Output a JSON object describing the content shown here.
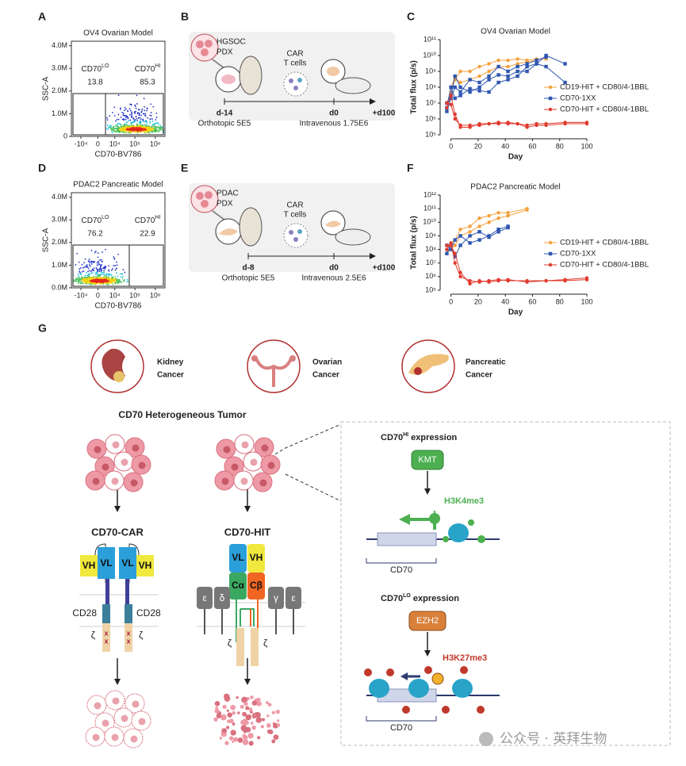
{
  "panel_labels": [
    "A",
    "B",
    "C",
    "D",
    "E",
    "F",
    "G"
  ],
  "chart_data": [
    {
      "type": "flow-density",
      "title": "OV4 Ovarian Model",
      "x_label": "CD70-BV786",
      "y_label": "SSC-A",
      "xscale": "biexponential",
      "xlim": [
        -30000,
        3000000
      ],
      "ylim": [
        0,
        4200000
      ],
      "xticks": [
        {
          "value": -10000,
          "label": "-10⁴"
        },
        0,
        {
          "value": 10000,
          "label": "10⁴"
        },
        {
          "value": 100000,
          "label": "10⁵"
        },
        {
          "value": 1000000,
          "label": "10⁶"
        }
      ],
      "yticks": [
        0,
        {
          "value": 1000000,
          "label": "1.0M"
        },
        {
          "value": 2000000,
          "label": "2.0M"
        },
        {
          "value": 3000000,
          "label": "3.0M"
        },
        {
          "value": 4000000,
          "label": "4.0M"
        }
      ],
      "gates": [
        {
          "name": {
            "base": "CD70",
            "sup": "LO"
          },
          "percent": 13.8
        },
        {
          "name": {
            "base": "CD70",
            "sup": "HI"
          },
          "percent": 85.3
        }
      ]
    },
    {
      "type": "line",
      "title": "OV4 Ovarian Model",
      "x_label": "Day",
      "y_label": "Total flux (p/s)",
      "log_scale": true,
      "legend": "right",
      "x": [
        -3,
        0,
        3,
        7,
        14,
        21,
        28,
        35,
        42,
        49,
        56,
        63,
        70,
        84,
        100
      ],
      "xlim": [
        -5,
        100
      ],
      "xticks": [
        0,
        20,
        40,
        60,
        80,
        100
      ],
      "ylim": [
        100000,
        100000000000
      ],
      "yticks": [
        {
          "value": 100000,
          "label": "10⁵"
        },
        {
          "value": 1000000,
          "label": "10⁶"
        },
        {
          "value": 10000000,
          "label": "10⁷"
        },
        {
          "value": 100000000,
          "label": "10⁸"
        },
        {
          "value": 1000000000,
          "label": "10⁹"
        },
        {
          "value": 10000000000,
          "label": "10¹⁰"
        },
        {
          "value": 100000000000,
          "label": "10¹¹"
        }
      ],
      "series": [
        {
          "name": "CD19-HIT + CD80/4-1BBL",
          "color": "#f4a03a",
          "marker": "circle",
          "replicates": [
            [
              10000000.0,
              50000000.0,
              300000000.0,
              1000000000.0,
              1000000000.0,
              2000000000.0,
              3000000000.0,
              5000000000.0,
              5000000000.0,
              6000000000.0,
              5000000000.0,
              6000000000.0,
              6000000000.0,
              null,
              null
            ],
            [
              5000000.0,
              100000000.0,
              400000000.0,
              200000000.0,
              300000000.0,
              500000000.0,
              1000000000.0,
              2000000000.0,
              2000000000.0,
              3000000000.0,
              4000000000.0,
              5000000000.0,
              null,
              null,
              null
            ]
          ]
        },
        {
          "name": "CD70-1XX",
          "color": "#2f56b0",
          "marker": "square",
          "replicates": [
            [
              3000000.0,
              20000000.0,
              100000000.0,
              50000000.0,
              300000000.0,
              200000000.0,
              500000000.0,
              2000000000.0,
              1000000000.0,
              2000000000.0,
              3000000000.0,
              5000000000.0,
              8000000000.0,
              null,
              null
            ],
            [
              10000000.0,
              30000000.0,
              500000000.0,
              100000000.0,
              50000000.0,
              100000000.0,
              300000000.0,
              600000000.0,
              500000000.0,
              1000000000.0,
              1000000000.0,
              3000000000.0,
              10000000000.0,
              3000000000.0,
              null
            ],
            [
              5000000.0,
              100000000.0,
              20000000.0,
              30000000.0,
              80000000.0,
              60000000.0,
              50000000.0,
              200000000.0,
              300000000.0,
              500000000.0,
              2000000000.0,
              3000000000.0,
              2000000000.0,
              200000000.0,
              null
            ]
          ]
        },
        {
          "name": "CD70-HIT + CD80/4-1BBL",
          "color": "#e03a2e",
          "marker": "circle",
          "replicates": [
            [
              5000000.0,
              30000000.0,
              2000000.0,
              300000.0,
              300000.0,
              500000.0,
              500000.0,
              600000.0,
              500000.0,
              500000.0,
              300000.0,
              400000.0,
              400000.0,
              500000.0,
              500000.0
            ],
            [
              10000000.0,
              8000000.0,
              1000000.0,
              400000.0,
              400000.0,
              400000.0,
              500000.0,
              500000.0,
              600000.0,
              500000.0,
              400000.0,
              500000.0,
              500000.0,
              600000.0,
              600000.0
            ]
          ]
        }
      ]
    },
    {
      "type": "flow-density",
      "title": "PDAC2 Pancreatic Model",
      "x_label": "CD70-BV786",
      "y_label": "SSC-A",
      "xscale": "biexponential",
      "xlim": [
        -30000,
        3000000
      ],
      "ylim": [
        0,
        4200000
      ],
      "xticks": [
        {
          "value": -10000,
          "label": "-10⁴"
        },
        0,
        {
          "value": 10000,
          "label": "10⁴"
        },
        {
          "value": 100000,
          "label": "10⁵"
        },
        {
          "value": 1000000,
          "label": "10⁶"
        }
      ],
      "yticks": [
        {
          "value": 0,
          "label": "0.0M"
        },
        {
          "value": 1000000,
          "label": "1.0M"
        },
        {
          "value": 2000000,
          "label": "2.0M"
        },
        {
          "value": 3000000,
          "label": "3.0M"
        },
        {
          "value": 4000000,
          "label": "4.0M"
        }
      ],
      "gates": [
        {
          "name": {
            "base": "CD70",
            "sup": "LO"
          },
          "percent": 76.2
        },
        {
          "name": {
            "base": "CD70",
            "sup": "HI"
          },
          "percent": 22.9
        }
      ]
    },
    {
      "type": "line",
      "title": "PDAC2 Pancreatic Model",
      "x_label": "Day",
      "y_label": "Total flux (p/s)",
      "log_scale": true,
      "legend": "right",
      "x": [
        -3,
        0,
        3,
        7,
        14,
        21,
        28,
        35,
        42,
        56,
        70,
        84,
        100
      ],
      "xlim": [
        -5,
        100
      ],
      "xticks": [
        0,
        20,
        40,
        60,
        80,
        100
      ],
      "ylim": [
        100000,
        1000000000000
      ],
      "yticks": [
        {
          "value": 100000,
          "label": "10⁵"
        },
        {
          "value": 1000000,
          "label": "10⁶"
        },
        {
          "value": 10000000,
          "label": "10⁷"
        },
        {
          "value": 100000000,
          "label": "10⁸"
        },
        {
          "value": 1000000000,
          "label": "10⁹"
        },
        {
          "value": 10000000000,
          "label": "10¹⁰"
        },
        {
          "value": 100000000000,
          "label": "10¹¹"
        },
        {
          "value": 1000000000000,
          "label": "10¹²"
        }
      ],
      "series": [
        {
          "name": "CD19-HIT + CD80/4-1BBL",
          "color": "#f4a03a",
          "marker": "circle",
          "replicates": [
            [
              100000000.0,
              300000000.0,
              500000000.0,
              3000000000.0,
              5000000000.0,
              20000000000.0,
              30000000000.0,
              50000000000.0,
              50000000000.0,
              100000000000.0,
              null,
              null,
              null
            ],
            [
              50000000.0,
              100000000.0,
              200000000.0,
              1000000000.0,
              2000000000.0,
              5000000000.0,
              10000000000.0,
              20000000000.0,
              30000000000.0,
              80000000000.0,
              null,
              null,
              null
            ]
          ]
        },
        {
          "name": "CD70-1XX",
          "color": "#2f56b0",
          "marker": "square",
          "replicates": [
            [
              200000000.0,
              100000000.0,
              500000000.0,
              1000000000.0,
              300000000.0,
              500000000.0,
              1000000000.0,
              3000000000.0,
              5000000000.0,
              null,
              null,
              null,
              null
            ],
            [
              50000000.0,
              200000000.0,
              30000000.0,
              200000000.0,
              1000000000.0,
              2000000000.0,
              800000000.0,
              2000000000.0,
              4000000000.0,
              null,
              null,
              null,
              null
            ]
          ]
        },
        {
          "name": "CD70-HIT + CD80/4-1BBL",
          "color": "#e03a2e",
          "marker": "circle",
          "replicates": [
            [
              100000000.0,
              300000000.0,
              10000000.0,
              1000000.0,
              500000.0,
              400000.0,
              500000.0,
              600000.0,
              500000.0,
              500000.0,
              500000.0,
              500000.0,
              600000.0
            ],
            [
              200000000.0,
              200000000.0,
              50000000.0,
              2000000.0,
              300000.0,
              500000.0,
              400000.0,
              500000.0,
              600000.0,
              400000.0,
              500000.0,
              600000.0,
              800000.0
            ]
          ]
        }
      ]
    }
  ],
  "diagram_b": {
    "tumor": [
      "HGSOC",
      "PDX"
    ],
    "cells": [
      "CAR",
      "T cells"
    ],
    "timeline": [
      "d-14",
      "d0",
      "+d100"
    ],
    "notes": [
      "Orthotopic 5E5",
      "Intravenous 1.75E6"
    ]
  },
  "diagram_e": {
    "tumor": [
      "PDAC",
      "PDX"
    ],
    "cells": [
      "CAR",
      "T cells"
    ],
    "timeline": [
      "d-8",
      "d0",
      "+d100"
    ],
    "notes": [
      "Orthotopic 5E5",
      "Intravenous 2.5E6"
    ]
  },
  "figure_g": {
    "cancers": [
      [
        "Kidney",
        "Cancer"
      ],
      [
        "Ovarian",
        "Cancer"
      ],
      [
        "Pancreatic",
        "Cancer"
      ]
    ],
    "tumor_title": "CD70 Heterogeneous Tumor",
    "car": {
      "title": "CD70-CAR",
      "domains": [
        "VH",
        "VL",
        "VL",
        "VH"
      ],
      "costim": [
        "CD28",
        "CD28"
      ],
      "signal": [
        "ζ",
        "ζ"
      ]
    },
    "hit": {
      "title": "CD70-HIT",
      "variable": [
        "VL",
        "VH"
      ],
      "constant": [
        "Cα",
        "Cβ"
      ],
      "cd3_left": [
        "ε",
        "δ"
      ],
      "cd3_right": [
        "γ",
        "ε"
      ],
      "signal": [
        "ζ",
        "ζ"
      ]
    },
    "hi": {
      "title": {
        "base": "CD70",
        "sup": "HI",
        "rest": " expression"
      },
      "enzyme": "KMT",
      "mark": "H3K4me3",
      "gene": "CD70"
    },
    "lo": {
      "title": {
        "base": "CD70",
        "sup": "LO",
        "rest": " expression"
      },
      "enzyme": "EZH2",
      "mark": "H3K27me3",
      "gene": "CD70"
    }
  },
  "watermark": "公众号 · 英拜生物"
}
